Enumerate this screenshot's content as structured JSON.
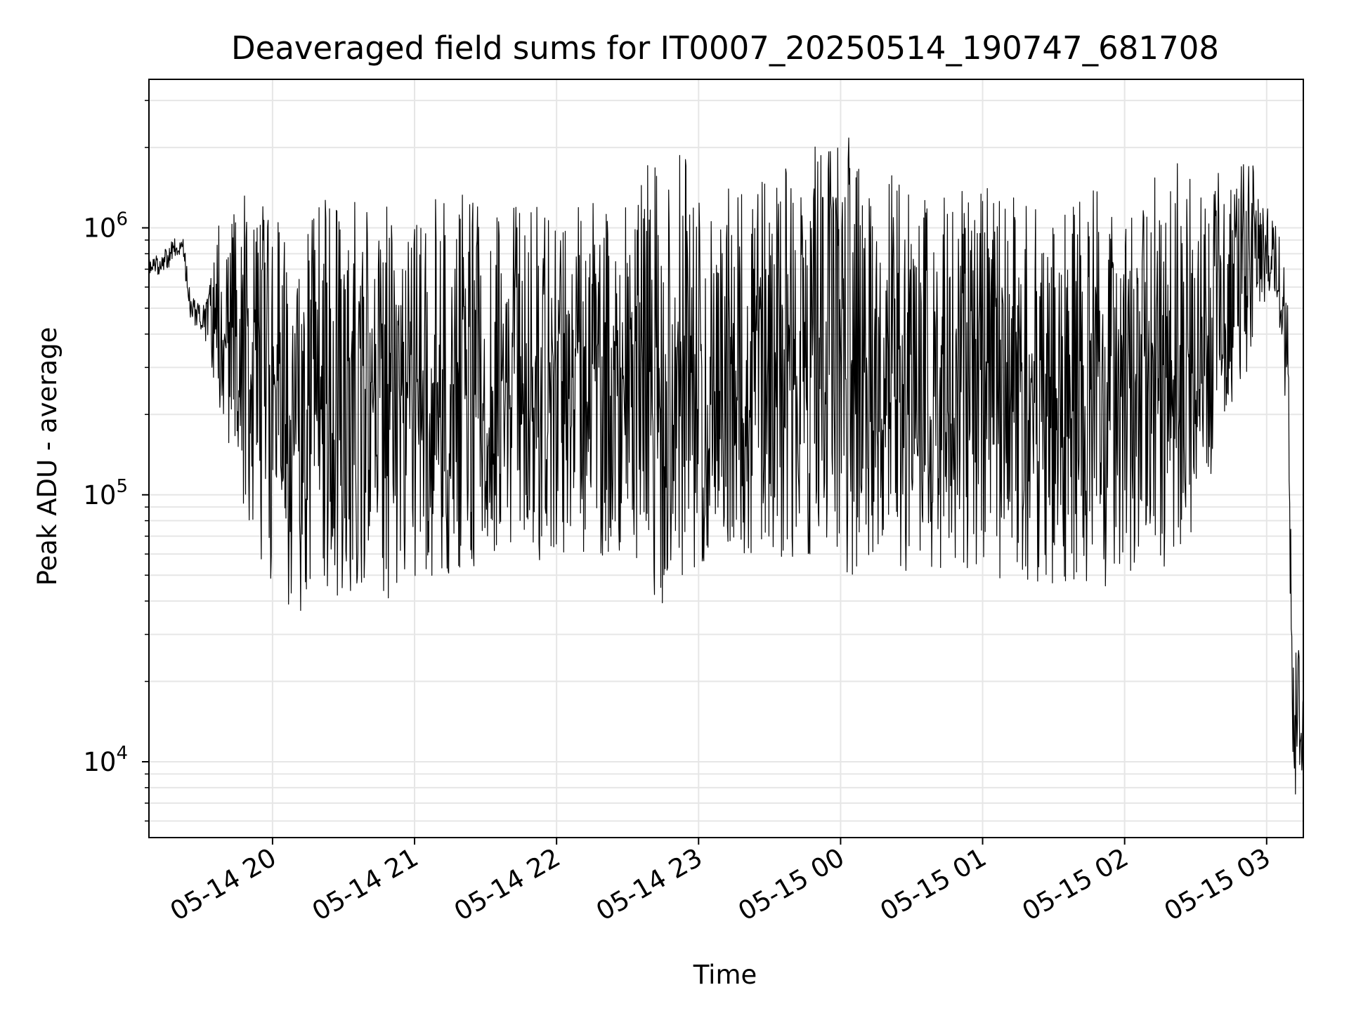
{
  "chart_data": {
    "type": "line",
    "title": "Deaveraged field sums for IT0007_20250514_190747_681708",
    "xlabel": "Time",
    "ylabel": "Peak ADU - average",
    "yscale": "log",
    "ylim": [
      5200,
      3600000
    ],
    "xlim": [
      "2025-05-14 19:07:47",
      "2025-05-15 03:15:30"
    ],
    "grid": true,
    "line_color": "#000000",
    "grid_color": "#e6e6e6",
    "x_ticks": [
      {
        "time": "2025-05-14 20:00",
        "label": "05-14 20"
      },
      {
        "time": "2025-05-14 21:00",
        "label": "05-14 21"
      },
      {
        "time": "2025-05-14 22:00",
        "label": "05-14 22"
      },
      {
        "time": "2025-05-14 23:00",
        "label": "05-14 23"
      },
      {
        "time": "2025-05-15 00:00",
        "label": "05-15 00"
      },
      {
        "time": "2025-05-15 01:00",
        "label": "05-15 01"
      },
      {
        "time": "2025-05-15 02:00",
        "label": "05-15 02"
      },
      {
        "time": "2025-05-15 03:00",
        "label": "05-15 03"
      }
    ],
    "y_ticks": [
      {
        "value": 10000,
        "base": "10",
        "exp": "4"
      },
      {
        "value": 100000,
        "base": "10",
        "exp": "5"
      },
      {
        "value": 1000000,
        "base": "10",
        "exp": "6"
      }
    ],
    "series": [
      {
        "x": [
          "2025-05-14 19:07",
          "2025-05-14 19:12",
          "2025-05-14 19:17",
          "2025-05-14 19:22",
          "2025-05-14 19:25",
          "2025-05-14 19:30",
          "2025-05-14 19:33",
          "2025-05-14 19:35",
          "2025-05-14 19:37",
          "2025-05-14 19:40",
          "2025-05-14 19:42",
          "2025-05-14 19:45",
          "2025-05-14 19:48",
          "2025-05-14 19:50",
          "2025-05-14 19:53",
          "2025-05-14 19:55",
          "2025-05-14 19:58",
          "2025-05-14 20:00",
          "2025-05-14 20:03",
          "2025-05-14 20:06",
          "2025-05-14 20:10",
          "2025-05-14 20:15",
          "2025-05-14 20:20",
          "2025-05-14 20:25",
          "2025-05-14 20:30",
          "2025-05-14 20:35",
          "2025-05-14 20:45",
          "2025-05-14 20:48",
          "2025-05-14 20:55",
          "2025-05-14 21:00",
          "2025-05-14 21:30",
          "2025-05-14 22:00",
          "2025-05-14 22:30",
          "2025-05-14 22:45",
          "2025-05-14 23:00",
          "2025-05-14 23:30",
          "2025-05-15 00:00",
          "2025-05-15 00:30",
          "2025-05-15 01:00",
          "2025-05-15 01:30",
          "2025-05-15 02:00",
          "2025-05-15 02:15",
          "2025-05-15 02:25",
          "2025-05-15 02:35",
          "2025-05-15 02:45",
          "2025-05-15 02:52",
          "2025-05-15 02:58",
          "2025-05-15 03:02",
          "2025-05-15 03:06",
          "2025-05-15 03:09",
          "2025-05-15 03:11",
          "2025-05-15 03:13",
          "2025-05-15 03:15"
        ],
        "high": [
          820000,
          780000,
          900000,
          950000,
          600000,
          500000,
          600000,
          900000,
          1100000,
          900000,
          1200000,
          1300000,
          1500000,
          1700000,
          1500000,
          1900000,
          1600000,
          1200000,
          1100000,
          1000000,
          900000,
          1000000,
          1300000,
          1500000,
          1400000,
          1300000,
          1300000,
          1200000,
          1200000,
          1300000,
          1400000,
          1300000,
          1200000,
          2900000,
          1400000,
          1500000,
          2600000,
          1300000,
          1500000,
          1500000,
          1300000,
          1600000,
          1800000,
          1700000,
          1500000,
          2200000,
          1200000,
          1200000,
          900000,
          700000,
          30000,
          28000,
          22000
        ],
        "low": [
          680000,
          660000,
          720000,
          820000,
          450000,
          400000,
          330000,
          260000,
          200000,
          170000,
          150000,
          110000,
          90000,
          70000,
          50000,
          45000,
          40000,
          40000,
          35000,
          33000,
          37000,
          33000,
          40000,
          42000,
          40000,
          40000,
          45000,
          40000,
          45000,
          45000,
          55000,
          55000,
          58000,
          38000,
          55000,
          60000,
          50000,
          50000,
          50000,
          45000,
          45000,
          50000,
          60000,
          100000,
          200000,
          280000,
          500000,
          600000,
          400000,
          100000,
          8000,
          7000,
          9000
        ]
      }
    ]
  }
}
